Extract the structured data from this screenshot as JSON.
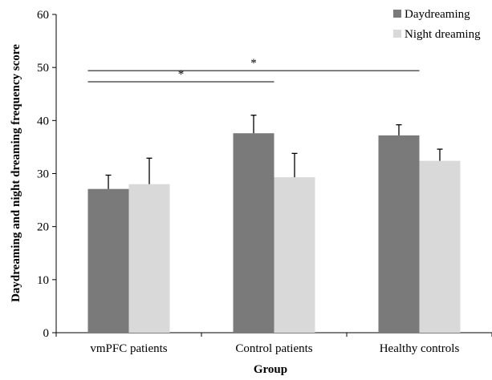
{
  "chart_data": {
    "type": "bar",
    "title": "",
    "xlabel": "Group",
    "ylabel": "Daydreaming and night dreaming frequency score",
    "ylim": [
      0,
      60
    ],
    "yticks": [
      "0",
      "10",
      "20",
      "30",
      "40",
      "50",
      "60"
    ],
    "grid": false,
    "legend_placement": "top-right",
    "categories": [
      "vmPFC patients",
      "Control patients",
      "Healthy controls"
    ],
    "series": [
      {
        "name": "Daydreaming",
        "color": "#7a7a7a",
        "values": [
          27.1,
          37.6,
          37.2
        ],
        "errors": [
          2.6,
          3.4,
          2.0
        ]
      },
      {
        "name": "Night dreaming",
        "color": "#d9d9d9",
        "values": [
          28.0,
          29.3,
          32.4
        ],
        "errors": [
          4.9,
          4.5,
          2.2
        ]
      }
    ],
    "annotations": [
      {
        "text": "*",
        "from_category": "vmPFC patients",
        "to_category": "Control patients",
        "y": 47.3
      },
      {
        "text": "*",
        "from_category": "vmPFC patients",
        "to_category": "Healthy controls",
        "y": 49.4
      }
    ]
  }
}
